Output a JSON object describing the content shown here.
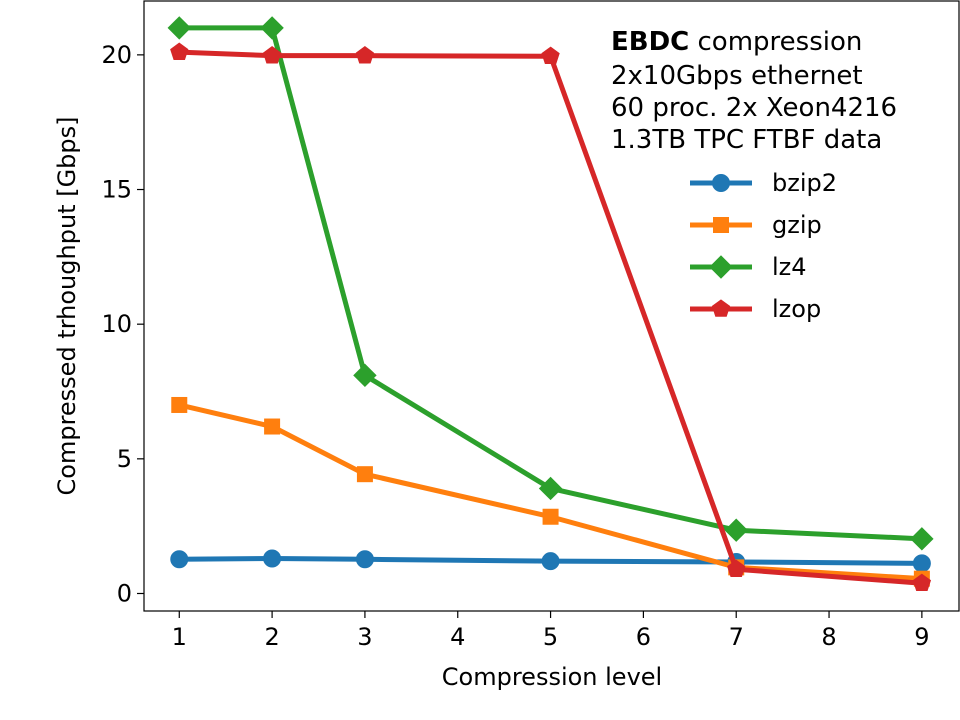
{
  "chart_data": {
    "type": "line",
    "xlabel": "Compression level",
    "ylabel": "Compressed trhoughput [Gbps]",
    "x": [
      1,
      2,
      3,
      5,
      7,
      9
    ],
    "xticks": [
      1,
      2,
      3,
      4,
      5,
      6,
      7,
      8,
      9
    ],
    "yticks": [
      0,
      5,
      10,
      15,
      20
    ],
    "xlim": [
      0.62,
      9.4
    ],
    "ylim": [
      -0.65,
      22.0
    ],
    "grid": false,
    "legend_position": "right, below annotation",
    "annotation": {
      "bold": "EBDC",
      "rest": " compression",
      "lines": [
        "2x10Gbps ethernet",
        "60 proc. 2x Xeon4216",
        "1.3TB TPC FTBF data"
      ]
    },
    "series": [
      {
        "name": "bzip2",
        "color": "#1f77b4",
        "marker": "circle",
        "values": [
          1.27,
          1.3,
          1.27,
          1.2,
          1.17,
          1.12
        ]
      },
      {
        "name": "gzip",
        "color": "#ff7f0e",
        "marker": "square",
        "values": [
          7.0,
          6.2,
          4.43,
          2.85,
          0.97,
          0.55
        ]
      },
      {
        "name": "lz4",
        "color": "#2ca02c",
        "marker": "diamond",
        "values": [
          21.0,
          21.0,
          8.1,
          3.9,
          2.35,
          2.03
        ]
      },
      {
        "name": "lzop",
        "color": "#d62728",
        "marker": "pentagon",
        "values": [
          20.1,
          19.97,
          19.97,
          19.95,
          0.9,
          0.38
        ]
      }
    ]
  }
}
